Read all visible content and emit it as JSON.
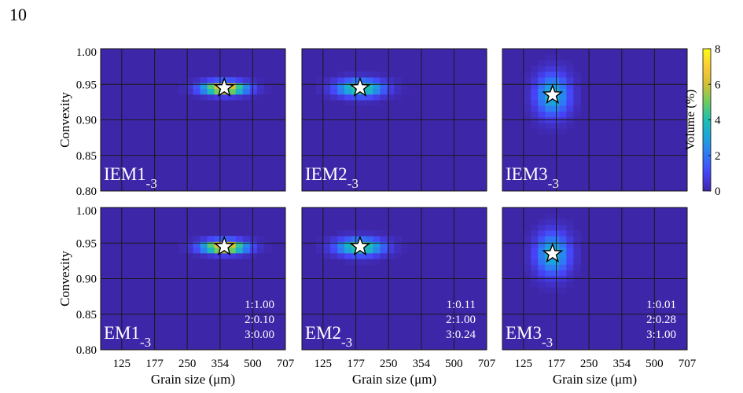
{
  "page_number": "10",
  "colorbar": {
    "label": "Volume (%)",
    "ticks": [
      0,
      2,
      4,
      6,
      8
    ],
    "range": [
      0,
      8
    ],
    "colormap": [
      "#3e26a8",
      "#4743f8",
      "#2f77f6",
      "#1ca3dc",
      "#1cbfb3",
      "#6bcc5e",
      "#d2c034",
      "#fcc935",
      "#f9fb15"
    ]
  },
  "chart_data": [
    {
      "type": "heatmap",
      "panel": "IEM1-3",
      "row": "IEM",
      "label_main": "IEM1",
      "label_sub": "-3",
      "xlabel": "",
      "ylabel": "Convexity",
      "xlim": [
        100,
        707
      ],
      "ylim": [
        0.8,
        1.0
      ],
      "x_scale": "log",
      "xticks": [
        "125",
        "177",
        "250",
        "354",
        "500",
        "707"
      ],
      "yticks": [
        "0.80",
        "0.85",
        "0.90",
        "0.95",
        "1.00"
      ],
      "peak": {
        "grain_size": 370,
        "convexity": 0.945,
        "volume": 8.0
      },
      "spread": {
        "log_size_sd": 0.16,
        "convexity_sd": 0.006
      },
      "ratios": []
    },
    {
      "type": "heatmap",
      "panel": "IEM2-3",
      "row": "IEM",
      "label_main": "IEM2",
      "label_sub": "-3",
      "xlabel": "",
      "ylabel": "",
      "xlim": [
        100,
        707
      ],
      "ylim": [
        0.8,
        1.0
      ],
      "x_scale": "log",
      "xticks": [
        "125",
        "177",
        "250",
        "354",
        "500",
        "707"
      ],
      "yticks": [
        "0.80",
        "0.85",
        "0.90",
        "0.95",
        "1.00"
      ],
      "peak": {
        "grain_size": 185,
        "convexity": 0.945,
        "volume": 5.0
      },
      "spread": {
        "log_size_sd": 0.17,
        "convexity_sd": 0.008
      },
      "ratios": []
    },
    {
      "type": "heatmap",
      "panel": "IEM3-3",
      "row": "IEM",
      "label_main": "IEM3",
      "label_sub": "-3",
      "xlabel": "",
      "ylabel": "",
      "xlim": [
        100,
        707
      ],
      "ylim": [
        0.8,
        1.0
      ],
      "x_scale": "log",
      "xticks": [
        "125",
        "177",
        "250",
        "354",
        "500",
        "707"
      ],
      "yticks": [
        "0.80",
        "0.85",
        "0.90",
        "0.95",
        "1.00"
      ],
      "peak": {
        "grain_size": 170,
        "convexity": 0.935,
        "volume": 3.6
      },
      "spread": {
        "log_size_sd": 0.12,
        "convexity_sd": 0.02
      },
      "ratios": []
    },
    {
      "type": "heatmap",
      "panel": "EM1-3",
      "row": "EM",
      "label_main": "EM1",
      "label_sub": "-3",
      "xlabel": "Grain size (μm)",
      "ylabel": "Convexity",
      "xlim": [
        100,
        707
      ],
      "ylim": [
        0.8,
        1.0
      ],
      "x_scale": "log",
      "xticks": [
        "125",
        "177",
        "250",
        "354",
        "500",
        "707"
      ],
      "yticks": [
        "0.80",
        "0.85",
        "0.90",
        "0.95",
        "1.00"
      ],
      "peak": {
        "grain_size": 370,
        "convexity": 0.945,
        "volume": 8.0
      },
      "spread": {
        "log_size_sd": 0.16,
        "convexity_sd": 0.006
      },
      "ratios": [
        "1:1.00",
        "2:0.10",
        "3:0.00"
      ]
    },
    {
      "type": "heatmap",
      "panel": "EM2-3",
      "row": "EM",
      "label_main": "EM2",
      "label_sub": "-3",
      "xlabel": "Grain size (μm)",
      "ylabel": "",
      "xlim": [
        100,
        707
      ],
      "ylim": [
        0.8,
        1.0
      ],
      "x_scale": "log",
      "xticks": [
        "125",
        "177",
        "250",
        "354",
        "500",
        "707"
      ],
      "yticks": [
        "0.80",
        "0.85",
        "0.90",
        "0.95",
        "1.00"
      ],
      "peak": {
        "grain_size": 185,
        "convexity": 0.945,
        "volume": 5.0
      },
      "spread": {
        "log_size_sd": 0.17,
        "convexity_sd": 0.008
      },
      "ratios": [
        "1:0.11",
        "2:1.00",
        "3:0.24"
      ]
    },
    {
      "type": "heatmap",
      "panel": "EM3-3",
      "row": "EM",
      "label_main": "EM3",
      "label_sub": "-3",
      "xlabel": "Grain size (μm)",
      "ylabel": "",
      "xlim": [
        100,
        707
      ],
      "ylim": [
        0.8,
        1.0
      ],
      "x_scale": "log",
      "xticks": [
        "125",
        "177",
        "250",
        "354",
        "500",
        "707"
      ],
      "yticks": [
        "0.80",
        "0.85",
        "0.90",
        "0.95",
        "1.00"
      ],
      "peak": {
        "grain_size": 170,
        "convexity": 0.935,
        "volume": 3.6
      },
      "spread": {
        "log_size_sd": 0.12,
        "convexity_sd": 0.02
      },
      "ratios": [
        "1:0.01",
        "2:0.28",
        "3:1.00"
      ]
    }
  ]
}
